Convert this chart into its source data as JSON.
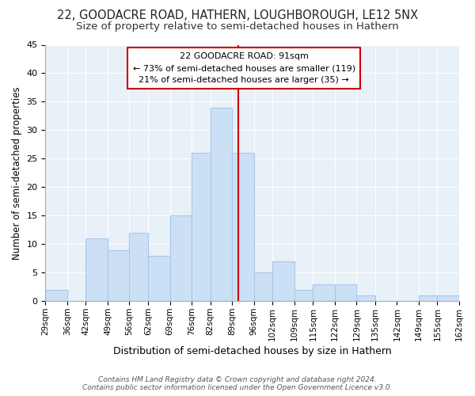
{
  "title1": "22, GOODACRE ROAD, HATHERN, LOUGHBOROUGH, LE12 5NX",
  "title2": "Size of property relative to semi-detached houses in Hathern",
  "xlabel": "Distribution of semi-detached houses by size in Hathern",
  "ylabel": "Number of semi-detached properties",
  "bin_edges": [
    29,
    36,
    42,
    49,
    56,
    62,
    69,
    76,
    82,
    89,
    96,
    102,
    109,
    115,
    122,
    129,
    135,
    142,
    149,
    155,
    162
  ],
  "counts": [
    2,
    0,
    11,
    9,
    12,
    8,
    15,
    26,
    34,
    26,
    5,
    7,
    2,
    3,
    3,
    1,
    0,
    0,
    1,
    1
  ],
  "bar_color": "#cce0f5",
  "bar_edge_color": "#a8c8e8",
  "vline_x": 91,
  "vline_color": "#cc0000",
  "annotation_title": "22 GOODACRE ROAD: 91sqm",
  "annotation_line1": "← 73% of semi-detached houses are smaller (119)",
  "annotation_line2": "21% of semi-detached houses are larger (35) →",
  "annotation_box_color": "#ffffff",
  "annotation_box_edge": "#cc0000",
  "ylim": [
    0,
    45
  ],
  "yticks": [
    0,
    5,
    10,
    15,
    20,
    25,
    30,
    35,
    40,
    45
  ],
  "bg_color": "#e8f0f8",
  "footer": "Contains HM Land Registry data © Crown copyright and database right 2024.\nContains public sector information licensed under the Open Government Licence v3.0.",
  "title1_fontsize": 10.5,
  "title2_fontsize": 9.5,
  "xlabel_fontsize": 9,
  "ylabel_fontsize": 8.5
}
